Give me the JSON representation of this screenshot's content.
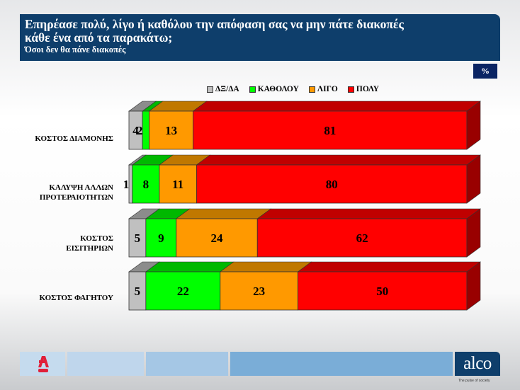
{
  "header": {
    "title_line1": "Επηρέασε πολύ, λίγο ή καθόλου την απόφαση σας να μην πάτε διακοπές",
    "title_line2": "κάθε ένα από τα παρακάτω;",
    "subtitle": "Όσοι δεν θα πάνε διακοπές",
    "unit_badge": "%"
  },
  "legend": [
    {
      "label": "ΔΞ/ΔΑ",
      "color": "#c0c0c0"
    },
    {
      "label": "ΚΑΘΟΛΟΥ",
      "color": "#00ff00"
    },
    {
      "label": "ΛΙΓΟ",
      "color": "#ff9900"
    },
    {
      "label": "ΠΟΛΥ",
      "color": "#ff0000"
    }
  ],
  "categories": [
    {
      "line1": "ΚΟΣΤΟΣ ΔΙΑΜΟΝΗΣ",
      "line2": ""
    },
    {
      "line1": "ΚΑΛΥΨΗ ΑΛΛΩΝ",
      "line2": "ΠΡΟΤΕΡΑΙΟΤΗΤΩΝ"
    },
    {
      "line1": "ΚΟΣΤΟΣ",
      "line2": "ΕΙΣΙΤΗΡΙΩΝ"
    },
    {
      "line1": "ΚΟΣΤΟΣ ΦΑΓΗΤΟΥ",
      "line2": ""
    }
  ],
  "chart_data": {
    "type": "bar",
    "orientation": "horizontal",
    "stacked": true,
    "three_d": true,
    "title": "Επηρέασε πολύ, λίγο ή καθόλου την απόφαση σας να μην πάτε διακοπές κάθε ένα από τα παρακάτω;",
    "subtitle": "Όσοι δεν θα πάνε διακοπές",
    "unit": "%",
    "categories": [
      "ΚΟΣΤΟΣ ΔΙΑΜΟΝΗΣ",
      "ΚΑΛΥΨΗ ΑΛΛΩΝ ΠΡΟΤΕΡΑΙΟΤΗΤΩΝ",
      "ΚΟΣΤΟΣ ΕΙΣΙΤΗΡΙΩΝ",
      "ΚΟΣΤΟΣ ΦΑΓΗΤΟΥ"
    ],
    "series": [
      {
        "name": "ΔΞ/ΔΑ",
        "color": "#c0c0c0",
        "top": "#8c8c8c",
        "values": [
          4,
          1,
          5,
          5
        ]
      },
      {
        "name": "ΚΑΘΟΛΟΥ",
        "color": "#00ff00",
        "top": "#00b800",
        "values": [
          2,
          8,
          9,
          22
        ]
      },
      {
        "name": "ΛΙΓΟ",
        "color": "#ff9900",
        "top": "#c07800",
        "values": [
          13,
          11,
          24,
          23
        ]
      },
      {
        "name": "ΠΟΛΥ",
        "color": "#ff0000",
        "top": "#c00000",
        "side": "#990000",
        "values": [
          81,
          80,
          62,
          50
        ]
      }
    ],
    "xlim": [
      0,
      100
    ],
    "legend_position": "top",
    "grid": false
  },
  "footer": {
    "brand": "alco",
    "tagline": "The pulse of society",
    "partner_logo": "ALPHA NEWS",
    "partner_badge": "NEWS"
  }
}
